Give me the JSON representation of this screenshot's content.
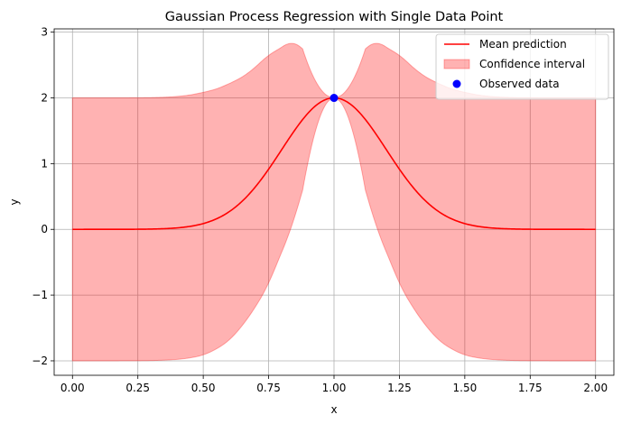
{
  "chart_data": {
    "type": "line",
    "title": "Gaussian Process Regression with Single Data Point",
    "xlabel": "x",
    "ylabel": "y",
    "xlim": [
      -0.07,
      2.07
    ],
    "ylim": [
      -2.22,
      3.05
    ],
    "xticks": [
      0.0,
      0.25,
      0.5,
      0.75,
      1.0,
      1.25,
      1.5,
      1.75,
      2.0
    ],
    "xtick_labels": [
      "0.00",
      "0.25",
      "0.50",
      "0.75",
      "1.00",
      "1.25",
      "1.50",
      "1.75",
      "2.00"
    ],
    "yticks": [
      -2,
      -1,
      0,
      1,
      2,
      3
    ],
    "ytick_labels": [
      "−2",
      "−1",
      "0",
      "1",
      "2",
      "3"
    ],
    "grid": true,
    "legend_position": "top-right",
    "series": [
      {
        "name": "Mean prediction",
        "kind": "line",
        "color": "#ff0000",
        "function": "2*exp(-(x-1)^2/(2*0.2^2))",
        "x": [
          0.0,
          0.25,
          0.5,
          0.6,
          0.7,
          0.8,
          0.9,
          1.0,
          1.1,
          1.2,
          1.3,
          1.4,
          1.5,
          1.75,
          2.0
        ],
        "y": [
          0.0,
          0.0,
          0.08,
          0.28,
          0.65,
          1.21,
          1.76,
          2.0,
          1.76,
          1.21,
          0.65,
          0.28,
          0.08,
          0.0,
          0.0
        ]
      },
      {
        "name": "Confidence interval",
        "kind": "band",
        "color": "#ff0000",
        "alpha": 0.3,
        "x": [
          0.0,
          0.25,
          0.5,
          0.6,
          0.7,
          0.75,
          0.8,
          0.835,
          0.9,
          1.0,
          1.1,
          1.165,
          1.2,
          1.25,
          1.3,
          1.4,
          1.5,
          1.75,
          2.0
        ],
        "upper": [
          2.0,
          2.0,
          2.08,
          2.23,
          2.47,
          2.63,
          2.76,
          2.8,
          2.67,
          2.0,
          2.67,
          2.8,
          2.76,
          2.63,
          2.47,
          2.23,
          2.08,
          2.0,
          2.0
        ],
        "lower": [
          -2.0,
          -2.0,
          -1.92,
          -1.68,
          -1.18,
          -0.87,
          -0.34,
          -0.1,
          0.85,
          2.0,
          0.85,
          -0.1,
          -0.34,
          -0.87,
          -1.18,
          -1.68,
          -1.92,
          -2.0,
          -2.0
        ]
      },
      {
        "name": "Observed data",
        "kind": "scatter",
        "color": "#0000ff",
        "x": [
          1.0
        ],
        "y": [
          2.0
        ]
      }
    ]
  }
}
